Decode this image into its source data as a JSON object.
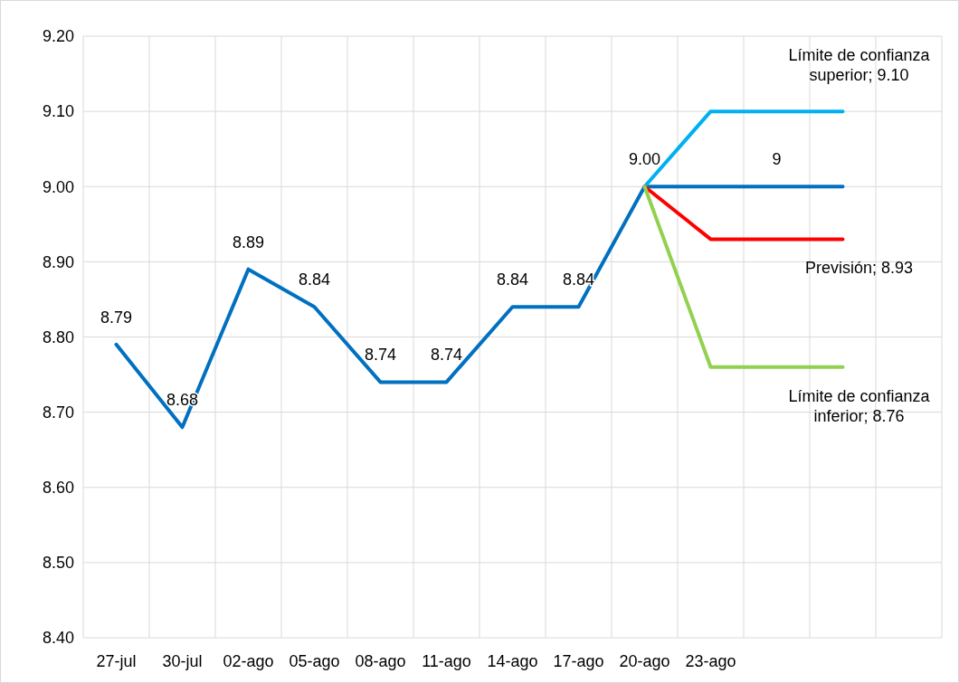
{
  "chart_data": {
    "type": "line",
    "categories": [
      "27-jul",
      "30-jul",
      "02-ago",
      "05-ago",
      "08-ago",
      "11-ago",
      "14-ago",
      "17-ago",
      "20-ago",
      "23-ago",
      null,
      null,
      null
    ],
    "series": [
      {
        "color": "#0070c0",
        "values": [
          8.79,
          8.68,
          8.89,
          8.84,
          8.74,
          8.74,
          8.84,
          8.84,
          9.0,
          9,
          9,
          9,
          null
        ],
        "value_labels": [
          "8.79",
          "8.68",
          "8.89",
          "8.84",
          "8.74",
          "8.74",
          "8.84",
          "8.84",
          "9.00",
          null,
          "9",
          null,
          null
        ]
      },
      {
        "color": "#00b0f0",
        "values": [
          null,
          null,
          null,
          null,
          null,
          null,
          null,
          null,
          9.0,
          9.1,
          9.1,
          9.1,
          null
        ],
        "value_labels": [
          null,
          null,
          null,
          null,
          null,
          null,
          null,
          null,
          null,
          null,
          null,
          "Límite de confianza superior; 9.10",
          null
        ]
      },
      {
        "color": "#ff0000",
        "values": [
          null,
          null,
          null,
          null,
          null,
          null,
          null,
          null,
          9.0,
          8.93,
          8.93,
          8.93,
          null
        ],
        "value_labels": [
          null,
          null,
          null,
          null,
          null,
          null,
          null,
          null,
          null,
          null,
          null,
          "Previsión; 8.93",
          null
        ]
      },
      {
        "color": "#92d050",
        "values": [
          null,
          null,
          null,
          null,
          null,
          null,
          null,
          null,
          9.0,
          8.76,
          8.76,
          8.76,
          null
        ],
        "value_labels": [
          null,
          null,
          null,
          null,
          null,
          null,
          null,
          null,
          null,
          null,
          null,
          "Límite de confianza inferior; 8.76",
          null
        ]
      }
    ],
    "ylim": [
      8.4,
      9.2
    ],
    "yticks": [
      {
        "value": 8.4,
        "label": "8.40"
      },
      {
        "value": 8.5,
        "label": "8.50"
      },
      {
        "value": 8.6,
        "label": "8.60"
      },
      {
        "value": 8.7,
        "label": "8.70"
      },
      {
        "value": 8.8,
        "label": "8.80"
      },
      {
        "value": 8.9,
        "label": "8.90"
      },
      {
        "value": 9.0,
        "label": "9.00"
      },
      {
        "value": 9.1,
        "label": "9.10"
      },
      {
        "value": 9.2,
        "label": "9.20"
      }
    ],
    "grid": true,
    "marker": "none",
    "line_style": "solid"
  }
}
